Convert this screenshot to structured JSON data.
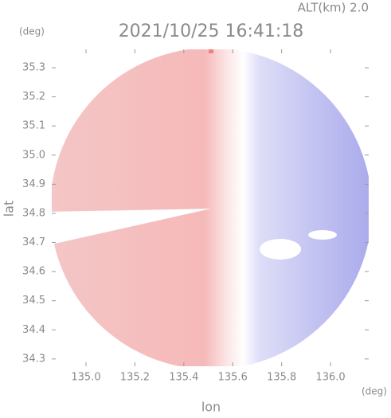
{
  "header": {
    "altitude": "ALT(km)  2.0",
    "title": "2021/10/25 16:41:18",
    "y_unit": "(deg)",
    "x_unit": "(deg)"
  },
  "axes": {
    "xlabel": "lon",
    "ylabel": "lat",
    "xlim": [
      134.86,
      136.156
    ],
    "ylim": [
      34.275,
      35.363
    ],
    "xticks": [
      {
        "value": 135,
        "label": "135.0"
      },
      135.2,
      135.4,
      135.6,
      135.8,
      {
        "value": 136,
        "label": "136.0"
      }
    ],
    "yticks": [
      34.3,
      34.4,
      34.5,
      34.6,
      34.7,
      34.8,
      34.9,
      {
        "value": 35,
        "label": "35.0"
      },
      35.1,
      35.2,
      35.3
    ]
  }
}
